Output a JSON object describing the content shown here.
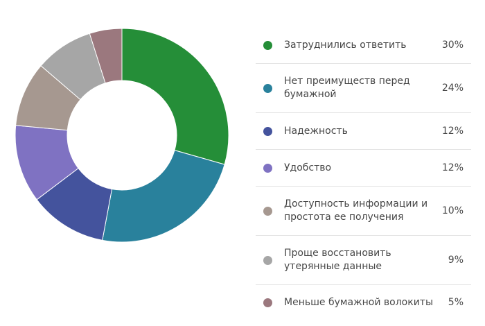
{
  "chart_data": {
    "type": "pie",
    "style": "donut",
    "legend_position": "right",
    "categories": [
      "Затруднились ответить",
      "Нет преимуществ перед бумажной",
      "Надежность",
      "Удобство",
      "Доступность информации и простота ее получения",
      "Проще восстановить утерянные данные",
      "Меньше бумажной волокиты"
    ],
    "values": [
      30,
      24,
      12,
      12,
      10,
      9,
      5
    ],
    "value_labels": [
      "30%",
      "24%",
      "12%",
      "12%",
      "10%",
      "9%",
      "5%"
    ],
    "colors": [
      "#258e38",
      "#29819c",
      "#44539d",
      "#7f72c2",
      "#a69890",
      "#a6a6a6",
      "#9b787e"
    ]
  }
}
